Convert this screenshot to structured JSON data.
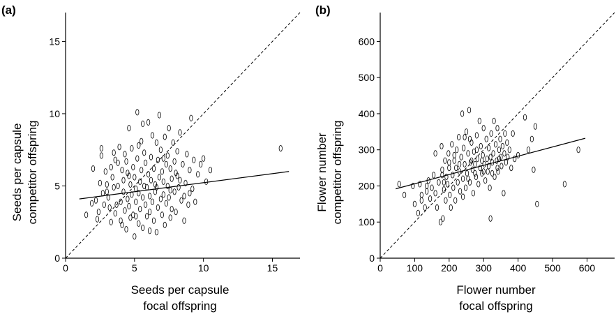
{
  "chart_data": [
    {
      "type": "scatter",
      "panel_label": "(a)",
      "xlabel": [
        "Seeds per capsule",
        "focal offspring"
      ],
      "ylabel": [
        "Seeds per capsule",
        "competitor offspring"
      ],
      "xlim": [
        0,
        17
      ],
      "ylim": [
        0,
        17
      ],
      "xticks": [
        0,
        5,
        10,
        15
      ],
      "yticks": [
        0,
        5,
        10,
        15
      ],
      "reference_line": {
        "style": "dashed",
        "points": [
          [
            0,
            0
          ],
          [
            17,
            17
          ]
        ]
      },
      "fit_line": {
        "style": "solid",
        "points": [
          [
            1.0,
            4.1
          ],
          [
            16.2,
            6.0
          ]
        ]
      },
      "points": [
        [
          1.5,
          3.0
        ],
        [
          1.9,
          3.8
        ],
        [
          2.0,
          6.2
        ],
        [
          2.2,
          4.0
        ],
        [
          2.3,
          2.7
        ],
        [
          2.5,
          5.2
        ],
        [
          2.6,
          7.6
        ],
        [
          2.6,
          7.1
        ],
        [
          2.7,
          4.5
        ],
        [
          2.8,
          3.7
        ],
        [
          2.9,
          6.0
        ],
        [
          3.0,
          5.1
        ],
        [
          3.1,
          4.2
        ],
        [
          3.2,
          3.5
        ],
        [
          3.3,
          2.5
        ],
        [
          3.4,
          5.6
        ],
        [
          3.5,
          7.3
        ],
        [
          3.5,
          4.9
        ],
        [
          3.6,
          3.1
        ],
        [
          3.7,
          3.7
        ],
        [
          3.8,
          6.6
        ],
        [
          3.8,
          5.0
        ],
        [
          3.9,
          7.7
        ],
        [
          4.0,
          3.9
        ],
        [
          4.0,
          2.6
        ],
        [
          4.1,
          6.1
        ],
        [
          4.2,
          4.6
        ],
        [
          4.2,
          5.4
        ],
        [
          4.3,
          7.2
        ],
        [
          4.3,
          3.3
        ],
        [
          4.4,
          2.0
        ],
        [
          4.4,
          6.7
        ],
        [
          4.5,
          5.9
        ],
        [
          4.5,
          4.1
        ],
        [
          4.6,
          9.0
        ],
        [
          4.6,
          3.6
        ],
        [
          4.7,
          5.1
        ],
        [
          4.7,
          2.8
        ],
        [
          4.8,
          7.6
        ],
        [
          4.8,
          4.4
        ],
        [
          4.9,
          6.3
        ],
        [
          4.9,
          3.0
        ],
        [
          5.0,
          5.6
        ],
        [
          5.0,
          1.5
        ],
        [
          5.1,
          4.8
        ],
        [
          5.1,
          3.9
        ],
        [
          5.2,
          10.1
        ],
        [
          5.2,
          6.9
        ],
        [
          5.3,
          4.5
        ],
        [
          5.3,
          2.4
        ],
        [
          5.4,
          5.3
        ],
        [
          5.4,
          3.4
        ],
        [
          5.5,
          8.1
        ],
        [
          5.5,
          6.1
        ],
        [
          5.6,
          4.2
        ],
        [
          5.6,
          2.1
        ],
        [
          5.7,
          7.3
        ],
        [
          5.7,
          5.0
        ],
        [
          5.8,
          3.7
        ],
        [
          5.8,
          6.6
        ],
        [
          5.9,
          4.9
        ],
        [
          5.9,
          2.9
        ],
        [
          6.0,
          9.4
        ],
        [
          6.0,
          5.8
        ],
        [
          6.1,
          4.3
        ],
        [
          6.1,
          3.2
        ],
        [
          6.2,
          7.0
        ],
        [
          6.2,
          5.4
        ],
        [
          6.3,
          8.5
        ],
        [
          6.3,
          3.9
        ],
        [
          6.4,
          6.2
        ],
        [
          6.4,
          2.6
        ],
        [
          6.5,
          5.1
        ],
        [
          6.5,
          4.6
        ],
        [
          6.6,
          8.0
        ],
        [
          6.6,
          1.8
        ],
        [
          6.7,
          6.8
        ],
        [
          6.7,
          3.5
        ],
        [
          6.8,
          9.9
        ],
        [
          6.8,
          5.6
        ],
        [
          6.9,
          4.1
        ],
        [
          6.9,
          7.5
        ],
        [
          7.0,
          6.0
        ],
        [
          7.0,
          3.0
        ],
        [
          7.1,
          5.3
        ],
        [
          7.1,
          4.4
        ],
        [
          7.2,
          8.4
        ],
        [
          7.2,
          2.3
        ],
        [
          7.3,
          6.5
        ],
        [
          7.3,
          3.8
        ],
        [
          7.4,
          7.1
        ],
        [
          7.4,
          5.0
        ],
        [
          7.5,
          9.0
        ],
        [
          7.5,
          4.2
        ],
        [
          7.6,
          6.2
        ],
        [
          7.6,
          2.8
        ],
        [
          7.7,
          5.5
        ],
        [
          7.7,
          3.4
        ],
        [
          7.8,
          8.0
        ],
        [
          7.9,
          6.7
        ],
        [
          7.9,
          4.6
        ],
        [
          8.0,
          5.9
        ],
        [
          8.0,
          3.2
        ],
        [
          8.1,
          7.4
        ],
        [
          8.2,
          4.9
        ],
        [
          8.3,
          8.7
        ],
        [
          8.3,
          5.4
        ],
        [
          8.4,
          4.0
        ],
        [
          8.5,
          6.5
        ],
        [
          8.6,
          2.6
        ],
        [
          8.7,
          5.2
        ],
        [
          8.8,
          7.2
        ],
        [
          8.9,
          3.7
        ],
        [
          9.0,
          6.1
        ],
        [
          9.1,
          9.7
        ],
        [
          9.2,
          4.8
        ],
        [
          9.3,
          6.8
        ],
        [
          9.4,
          3.9
        ],
        [
          9.6,
          5.8
        ],
        [
          9.8,
          6.5
        ],
        [
          10.0,
          6.9
        ],
        [
          10.2,
          5.3
        ],
        [
          10.5,
          6.1
        ],
        [
          15.6,
          7.6
        ],
        [
          2.4,
          3.2
        ],
        [
          3.0,
          4.6
        ],
        [
          3.6,
          6.8
        ],
        [
          4.1,
          2.3
        ],
        [
          4.6,
          5.7
        ],
        [
          5.1,
          2.9
        ],
        [
          5.6,
          9.3
        ],
        [
          6.1,
          1.9
        ],
        [
          6.6,
          4.9
        ],
        [
          7.1,
          6.9
        ],
        [
          7.6,
          4.7
        ],
        [
          8.1,
          5.7
        ],
        [
          8.6,
          4.3
        ],
        [
          9.0,
          4.5
        ],
        [
          3.3,
          6.3
        ],
        [
          5.3,
          7.8
        ]
      ]
    },
    {
      "type": "scatter",
      "panel_label": "(b)",
      "xlabel": [
        "Flower number",
        "focal offspring"
      ],
      "ylabel": [
        "Flower number",
        "competitor offspring"
      ],
      "xlim": [
        0,
        680
      ],
      "ylim": [
        0,
        680
      ],
      "xticks": [
        0,
        100,
        200,
        300,
        400,
        500,
        600
      ],
      "yticks": [
        0,
        100,
        200,
        300,
        400,
        500,
        600
      ],
      "reference_line": {
        "style": "dashed",
        "points": [
          [
            0,
            0
          ],
          [
            680,
            680
          ]
        ]
      },
      "fit_line": {
        "style": "solid",
        "points": [
          [
            45,
            192
          ],
          [
            595,
            332
          ]
        ]
      },
      "points": [
        [
          55,
          205
        ],
        [
          70,
          175
        ],
        [
          95,
          200
        ],
        [
          100,
          150
        ],
        [
          110,
          125
        ],
        [
          115,
          205
        ],
        [
          120,
          160
        ],
        [
          130,
          140
        ],
        [
          135,
          185
        ],
        [
          140,
          215
        ],
        [
          145,
          165
        ],
        [
          150,
          195
        ],
        [
          155,
          230
        ],
        [
          160,
          180
        ],
        [
          165,
          140
        ],
        [
          170,
          210
        ],
        [
          175,
          100
        ],
        [
          178,
          310
        ],
        [
          180,
          245
        ],
        [
          182,
          110
        ],
        [
          185,
          190
        ],
        [
          188,
          270
        ],
        [
          190,
          160
        ],
        [
          192,
          225
        ],
        [
          195,
          205
        ],
        [
          198,
          290
        ],
        [
          200,
          250
        ],
        [
          202,
          175
        ],
        [
          205,
          140
        ],
        [
          208,
          315
        ],
        [
          210,
          230
        ],
        [
          212,
          195
        ],
        [
          215,
          270
        ],
        [
          218,
          160
        ],
        [
          220,
          250
        ],
        [
          222,
          300
        ],
        [
          225,
          210
        ],
        [
          228,
          335
        ],
        [
          230,
          240
        ],
        [
          232,
          185
        ],
        [
          235,
          280
        ],
        [
          238,
          400
        ],
        [
          240,
          220
        ],
        [
          242,
          305
        ],
        [
          245,
          260
        ],
        [
          248,
          195
        ],
        [
          250,
          350
        ],
        [
          252,
          235
        ],
        [
          255,
          290
        ],
        [
          258,
          410
        ],
        [
          260,
          210
        ],
        [
          262,
          265
        ],
        [
          265,
          320
        ],
        [
          268,
          245
        ],
        [
          270,
          180
        ],
        [
          272,
          295
        ],
        [
          275,
          260
        ],
        [
          278,
          225
        ],
        [
          280,
          340
        ],
        [
          282,
          275
        ],
        [
          285,
          205
        ],
        [
          288,
          380
        ],
        [
          290,
          250
        ],
        [
          292,
          310
        ],
        [
          295,
          235
        ],
        [
          298,
          285
        ],
        [
          300,
          360
        ],
        [
          302,
          260
        ],
        [
          305,
          215
        ],
        [
          308,
          330
        ],
        [
          310,
          275
        ],
        [
          312,
          240
        ],
        [
          315,
          305
        ],
        [
          318,
          195
        ],
        [
          320,
          110
        ],
        [
          322,
          345
        ],
        [
          325,
          265
        ],
        [
          328,
          290
        ],
        [
          330,
          380
        ],
        [
          332,
          225
        ],
        [
          335,
          315
        ],
        [
          338,
          270
        ],
        [
          340,
          360
        ],
        [
          342,
          240
        ],
        [
          345,
          300
        ],
        [
          348,
          330
        ],
        [
          350,
          280
        ],
        [
          352,
          255
        ],
        [
          355,
          310
        ],
        [
          358,
          180
        ],
        [
          360,
          290
        ],
        [
          362,
          345
        ],
        [
          365,
          265
        ],
        [
          368,
          320
        ],
        [
          370,
          280
        ],
        [
          375,
          300
        ],
        [
          380,
          250
        ],
        [
          385,
          345
        ],
        [
          390,
          275
        ],
        [
          400,
          285
        ],
        [
          420,
          390
        ],
        [
          430,
          300
        ],
        [
          440,
          330
        ],
        [
          445,
          245
        ],
        [
          450,
          365
        ],
        [
          455,
          150
        ],
        [
          535,
          205
        ],
        [
          575,
          300
        ],
        [
          160,
          290
        ],
        [
          180,
          230
        ],
        [
          200,
          265
        ],
        [
          240,
          170
        ],
        [
          260,
          330
        ],
        [
          280,
          300
        ],
        [
          300,
          240
        ],
        [
          320,
          280
        ],
        [
          340,
          250
        ],
        [
          215,
          285
        ],
        [
          245,
          335
        ],
        [
          275,
          235
        ],
        [
          295,
          270
        ],
        [
          315,
          255
        ],
        [
          230,
          260
        ],
        [
          265,
          270
        ],
        [
          185,
          210
        ],
        [
          135,
          200
        ],
        [
          120,
          175
        ],
        [
          255,
          220
        ],
        [
          325,
          235
        ],
        [
          345,
          275
        ]
      ]
    }
  ]
}
